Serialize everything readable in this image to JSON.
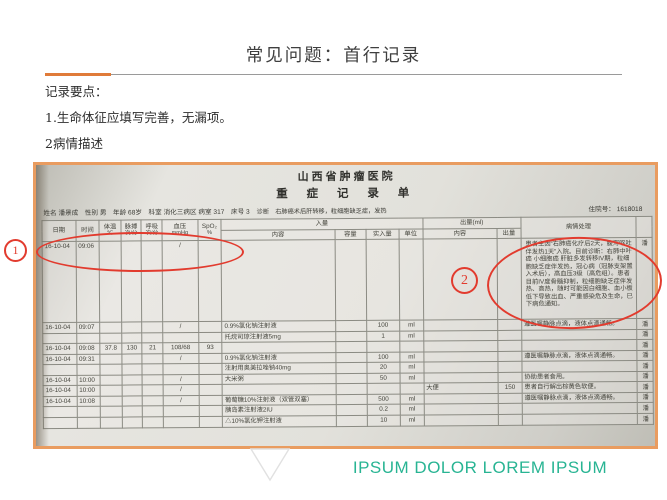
{
  "slide": {
    "title": "常见问题：首行记录",
    "bullets": [
      "记录要点：",
      "1.生命体征应填写完善，无漏项。",
      "2病情描述"
    ],
    "footer_text": "IPSUM DOLOR LOREM IPSUM",
    "accent_orange": "#e07b39",
    "photo_border_orange": "#e99c60",
    "footer_teal": "#28b493"
  },
  "annotations": {
    "color": "#e23b2e",
    "marker1_label": "1",
    "marker2_label": "2"
  },
  "photo": {
    "hospital": "山西省肿瘤医院",
    "doc_title": "重 症 记 录 单",
    "patient_info": "姓名 潘景成　性别 男　年龄 68岁　科室 消化三病区 病室 317　床号 3",
    "diagnosis": "诊断　右肺癌术后肝转移，粒细胞缺乏症，发热",
    "admission_no": "住院号：  1618018",
    "table": {
      "headers": {
        "date": "日期",
        "time": "时间",
        "temp": "体温",
        "temp_unit": "℃",
        "pulse": "脉搏",
        "pulse_unit": "次/分",
        "resp": "呼吸",
        "resp_unit": "次/分",
        "bp": "血压",
        "bp_unit": "mmHg",
        "spo2": "SpO₂",
        "spo2_unit": "%",
        "intake_group": "入量",
        "in_content": "内容",
        "in_vol": "容量",
        "in_actual": "实入量",
        "in_unit": "单位",
        "output_group": "出量(ml)",
        "out_content": "内容",
        "out_amt": "出量",
        "note": "病情处理",
        "sign": ""
      },
      "rows": [
        {
          "date": "16-10-04",
          "time": "09:06",
          "bp": "/",
          "note": "患者主因“右肺癌化疗后2天，腹泻呕吐伴发热1天”入院。目前诊断：右肺中叶癌 小细胞癌 肝脏多发转移IV期，粒细胞缺乏症伴发热，冠心病（冠脉支架置入术后），高血压3级（高危组）。患者目前IV度骨髓抑制，粒细胞缺乏症伴发热、高热，随时可能因白细胞、血小板低下导致出血、严重感染危及生命，已下病危通知。",
          "sign": "潘"
        },
        {
          "date": "16-10-04",
          "time": "09:07",
          "bp": "/",
          "in_content": "0.9%氯化钠注射液",
          "in_actual": "100",
          "in_unit": "ml",
          "note": "遵医嘱静脉点滴，液体点滴通畅。",
          "sign": "潘"
        },
        {
          "in_content": "托烷司琼注射液5mg",
          "in_actual": "1",
          "in_unit": "ml",
          "sign": "潘"
        },
        {
          "date": "16-10-04",
          "time": "09:08",
          "temp": "37.8",
          "pulse": "130",
          "resp": "21",
          "bp": "108/68",
          "spo2": "93",
          "sign": "潘"
        },
        {
          "date": "16-10-04",
          "time": "09:31",
          "bp": "/",
          "in_content": "0.9%氯化钠注射液",
          "in_actual": "100",
          "in_unit": "ml",
          "note": "遵医嘱静脉点滴，液体点滴通畅。",
          "sign": "潘"
        },
        {
          "in_content": "注射用奥美拉唑钠40mg",
          "in_actual": "20",
          "in_unit": "ml",
          "sign": "潘"
        },
        {
          "date": "16-10-04",
          "time": "10:00",
          "bp": "/",
          "in_content": "大米粥",
          "in_actual": "50",
          "in_unit": "ml",
          "note": "协助患者食用。",
          "sign": "潘"
        },
        {
          "date": "16-10-04",
          "time": "10:00",
          "bp": "/",
          "out_content": "大便",
          "out_amt": "150",
          "note": "患者自行解出棕黄色软便。",
          "sign": "潘"
        },
        {
          "date": "16-10-04",
          "time": "10:08",
          "bp": "/",
          "in_content": "葡萄糖10%注射液（双管双塞）",
          "in_actual": "500",
          "in_unit": "ml",
          "note": "遵医嘱静脉点滴，液体点滴通畅。",
          "sign": "潘"
        },
        {
          "in_content": "胰岛素注射液2IU",
          "in_actual": "0.2",
          "in_unit": "ml",
          "sign": "潘"
        },
        {
          "in_content": "△10%氯化钾注射液",
          "in_actual": "10",
          "in_unit": "ml",
          "sign": "潘"
        }
      ]
    }
  }
}
